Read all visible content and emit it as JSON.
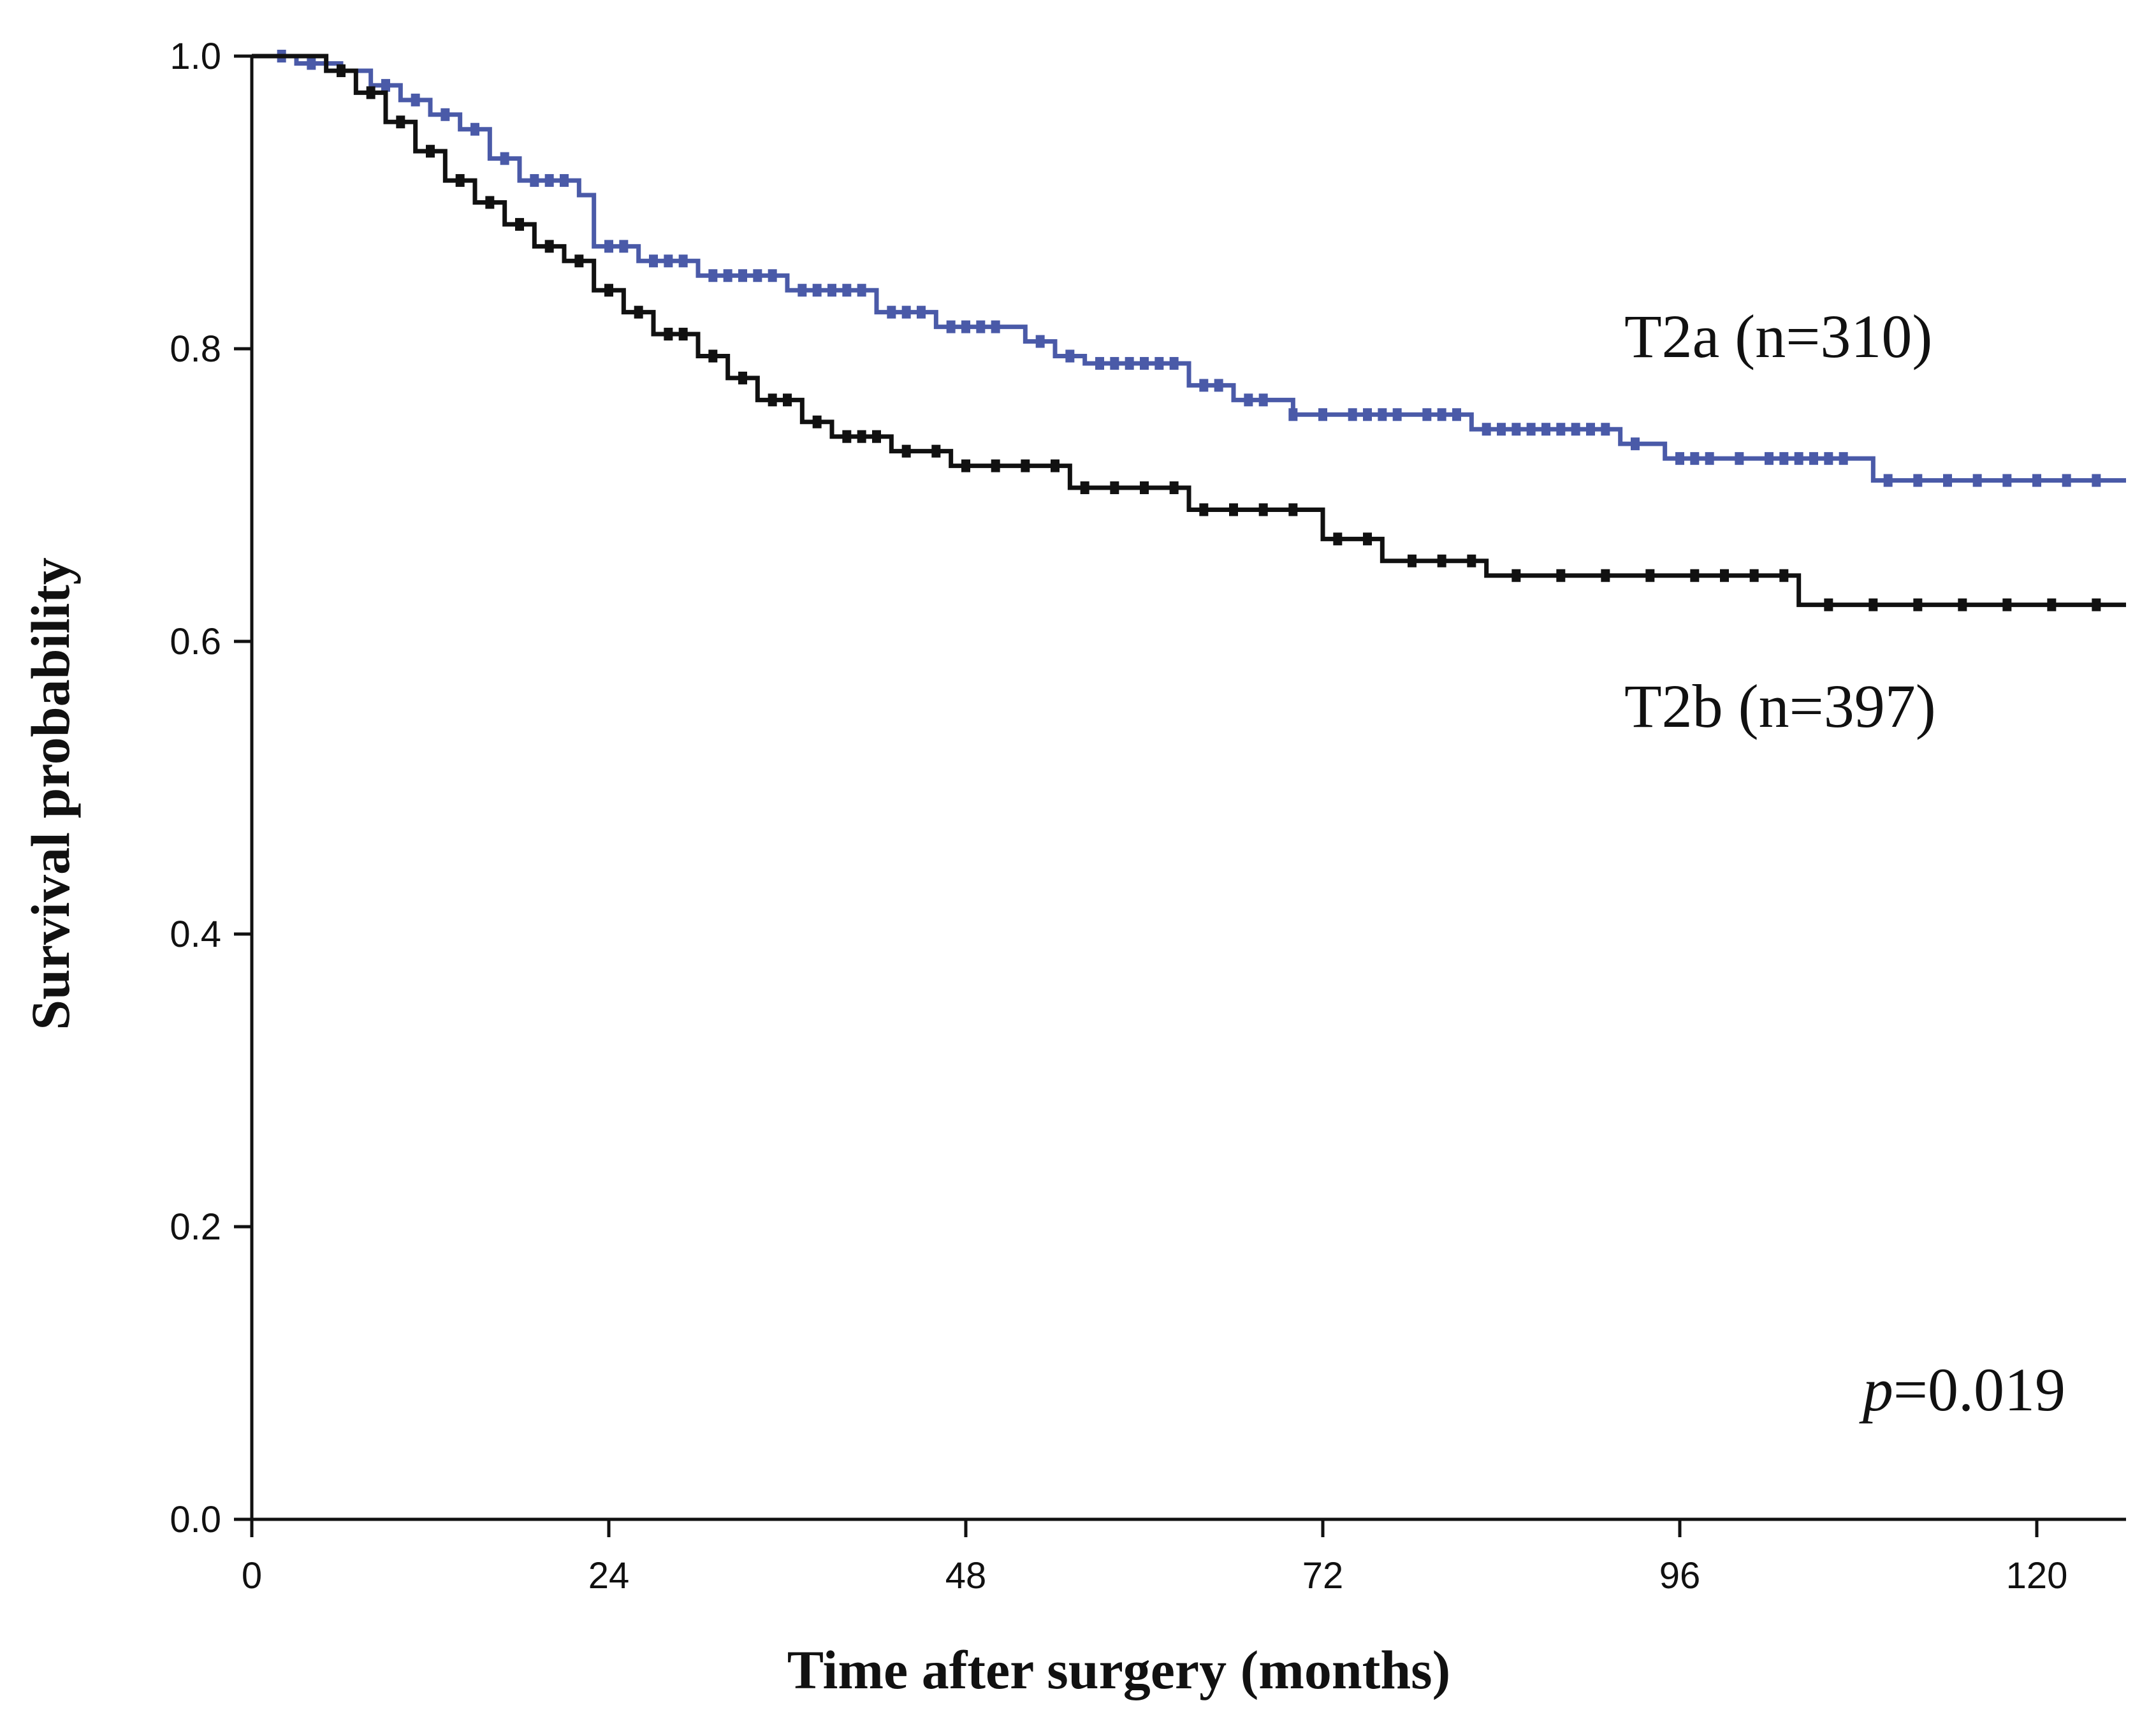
{
  "chart_data": {
    "type": "line",
    "subtype": "kaplan-meier",
    "title": "",
    "xlabel": "Time after surgery (months)",
    "ylabel": "Survival probability",
    "xlim": [
      0,
      126
    ],
    "ylim": [
      0,
      1
    ],
    "x_ticks": [
      0,
      24,
      48,
      72,
      96,
      120
    ],
    "x_tick_labels": [
      "0",
      "24",
      "48",
      "72",
      "96",
      "120"
    ],
    "y_ticks": [
      0,
      0.2,
      0.4,
      0.6,
      0.8,
      1.0
    ],
    "y_tick_labels": [
      "0.0",
      "0.2",
      "0.4",
      "0.6",
      "0.8",
      "1.0"
    ],
    "grid": false,
    "annotation": {
      "p_symbol": "p",
      "p_value": "=0.019"
    },
    "series": [
      {
        "name": "T2a (n=310)",
        "color": "#4a5aa8",
        "steps": [
          [
            0,
            1.0
          ],
          [
            3,
            0.995
          ],
          [
            6,
            0.99
          ],
          [
            8,
            0.98
          ],
          [
            10,
            0.97
          ],
          [
            12,
            0.96
          ],
          [
            14,
            0.95
          ],
          [
            16,
            0.93
          ],
          [
            18,
            0.915
          ],
          [
            22,
            0.905
          ],
          [
            23,
            0.87
          ],
          [
            26,
            0.86
          ],
          [
            30,
            0.85
          ],
          [
            36,
            0.84
          ],
          [
            42,
            0.825
          ],
          [
            46,
            0.815
          ],
          [
            52,
            0.805
          ],
          [
            54,
            0.795
          ],
          [
            56,
            0.79
          ],
          [
            63,
            0.775
          ],
          [
            66,
            0.765
          ],
          [
            70,
            0.755
          ],
          [
            82,
            0.745
          ],
          [
            92,
            0.735
          ],
          [
            95,
            0.725
          ],
          [
            109,
            0.71
          ],
          [
            126,
            0.71
          ]
        ],
        "censor_x": [
          2,
          4,
          9,
          11,
          13,
          15,
          17,
          19,
          20,
          21,
          24,
          25,
          27,
          28,
          29,
          31,
          32,
          33,
          34,
          35,
          37,
          38,
          39,
          40,
          41,
          43,
          44,
          45,
          47,
          48,
          49,
          50,
          53,
          55,
          57,
          58,
          59,
          60,
          61,
          62,
          64,
          65,
          67,
          68,
          70,
          72,
          74,
          75,
          76,
          77,
          79,
          80,
          81,
          83,
          84,
          85,
          86,
          87,
          88,
          89,
          90,
          91,
          93,
          96,
          97,
          98,
          100,
          102,
          103,
          104,
          105,
          106,
          107,
          110,
          112,
          114,
          116,
          118,
          120,
          122,
          124
        ]
      },
      {
        "name": "T2b (n=397)",
        "color": "#111111",
        "steps": [
          [
            0,
            1.0
          ],
          [
            5,
            0.99
          ],
          [
            7,
            0.975
          ],
          [
            9,
            0.955
          ],
          [
            11,
            0.935
          ],
          [
            13,
            0.915
          ],
          [
            15,
            0.9
          ],
          [
            17,
            0.885
          ],
          [
            19,
            0.87
          ],
          [
            21,
            0.86
          ],
          [
            23,
            0.84
          ],
          [
            25,
            0.825
          ],
          [
            27,
            0.81
          ],
          [
            30,
            0.795
          ],
          [
            32,
            0.78
          ],
          [
            34,
            0.765
          ],
          [
            37,
            0.75
          ],
          [
            39,
            0.74
          ],
          [
            43,
            0.73
          ],
          [
            47,
            0.72
          ],
          [
            55,
            0.705
          ],
          [
            63,
            0.69
          ],
          [
            72,
            0.67
          ],
          [
            76,
            0.655
          ],
          [
            83,
            0.645
          ],
          [
            104,
            0.625
          ],
          [
            126,
            0.625
          ]
        ],
        "censor_x": [
          6,
          8,
          10,
          12,
          14,
          16,
          18,
          20,
          22,
          24,
          26,
          28,
          29,
          31,
          33,
          35,
          36,
          38,
          40,
          41,
          42,
          44,
          46,
          48,
          50,
          52,
          54,
          56,
          58,
          60,
          62,
          64,
          66,
          68,
          70,
          73,
          75,
          78,
          80,
          82,
          85,
          88,
          91,
          94,
          97,
          99,
          101,
          103,
          106,
          109,
          112,
          115,
          118,
          121,
          124
        ]
      }
    ]
  }
}
